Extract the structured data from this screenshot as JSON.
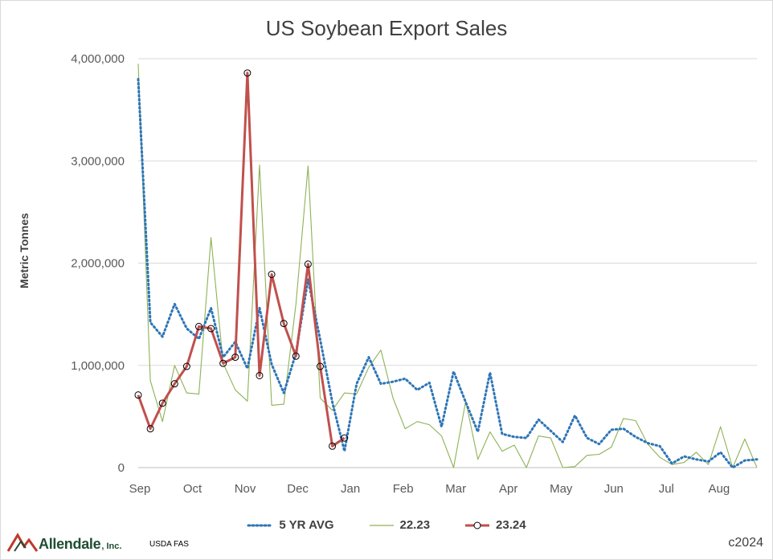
{
  "chart_data": {
    "type": "line",
    "title": "US Soybean Export Sales",
    "ylabel": "Metric Tonnes",
    "xlabel": "",
    "ylim": [
      0,
      4000000
    ],
    "y_ticks": [
      "0",
      "1,000,000",
      "2,000,000",
      "3,000,000",
      "4,000,000"
    ],
    "y_tick_values": [
      0,
      1000000,
      2000000,
      3000000,
      4000000
    ],
    "x_tick_labels": [
      "Sep",
      "Oct",
      "Nov",
      "Dec",
      "Jan",
      "Feb",
      "Mar",
      "Apr",
      "May",
      "Jun",
      "Jul",
      "Aug"
    ],
    "grid": "horizontal",
    "legend_position": "bottom",
    "series": [
      {
        "name": "5 YR AVG",
        "style": "dotted",
        "color": "#2e75b6",
        "values": [
          3800000,
          1420000,
          1280000,
          1600000,
          1360000,
          1260000,
          1560000,
          1080000,
          1230000,
          970000,
          1560000,
          1010000,
          730000,
          1120000,
          1840000,
          1250000,
          640000,
          160000,
          820000,
          1080000,
          820000,
          840000,
          870000,
          760000,
          830000,
          400000,
          940000,
          640000,
          350000,
          930000,
          330000,
          300000,
          290000,
          470000,
          360000,
          250000,
          510000,
          290000,
          230000,
          370000,
          380000,
          300000,
          240000,
          210000,
          40000,
          110000,
          80000,
          60000,
          150000,
          0,
          70000,
          80000
        ]
      },
      {
        "name": "22.23",
        "style": "solid",
        "color": "#8db255",
        "values": [
          3950000,
          850000,
          450000,
          1000000,
          730000,
          720000,
          2250000,
          1020000,
          760000,
          650000,
          2960000,
          610000,
          620000,
          1600000,
          2950000,
          680000,
          560000,
          730000,
          720000,
          980000,
          1150000,
          680000,
          380000,
          450000,
          420000,
          310000,
          -10000,
          650000,
          80000,
          350000,
          160000,
          220000,
          -20000,
          310000,
          290000,
          -5000,
          10000,
          120000,
          130000,
          200000,
          480000,
          460000,
          230000,
          100000,
          30000,
          50000,
          150000,
          30000,
          400000,
          -10000,
          280000,
          -10000
        ]
      },
      {
        "name": "23.24",
        "style": "solid-markers",
        "color": "#c0504d",
        "values": [
          710000,
          380000,
          630000,
          820000,
          990000,
          1380000,
          1360000,
          1020000,
          1080000,
          3860000,
          900000,
          1890000,
          1410000,
          1090000,
          1990000,
          990000,
          210000,
          290000
        ]
      }
    ]
  },
  "legend": {
    "items": [
      {
        "label": "5 YR AVG"
      },
      {
        "label": "22.23"
      },
      {
        "label": "23.24"
      }
    ]
  },
  "footer": {
    "logo_text": "Allendale",
    "logo_suffix": ", Inc.",
    "source": "USDA FAS",
    "copyright": "c2024"
  }
}
